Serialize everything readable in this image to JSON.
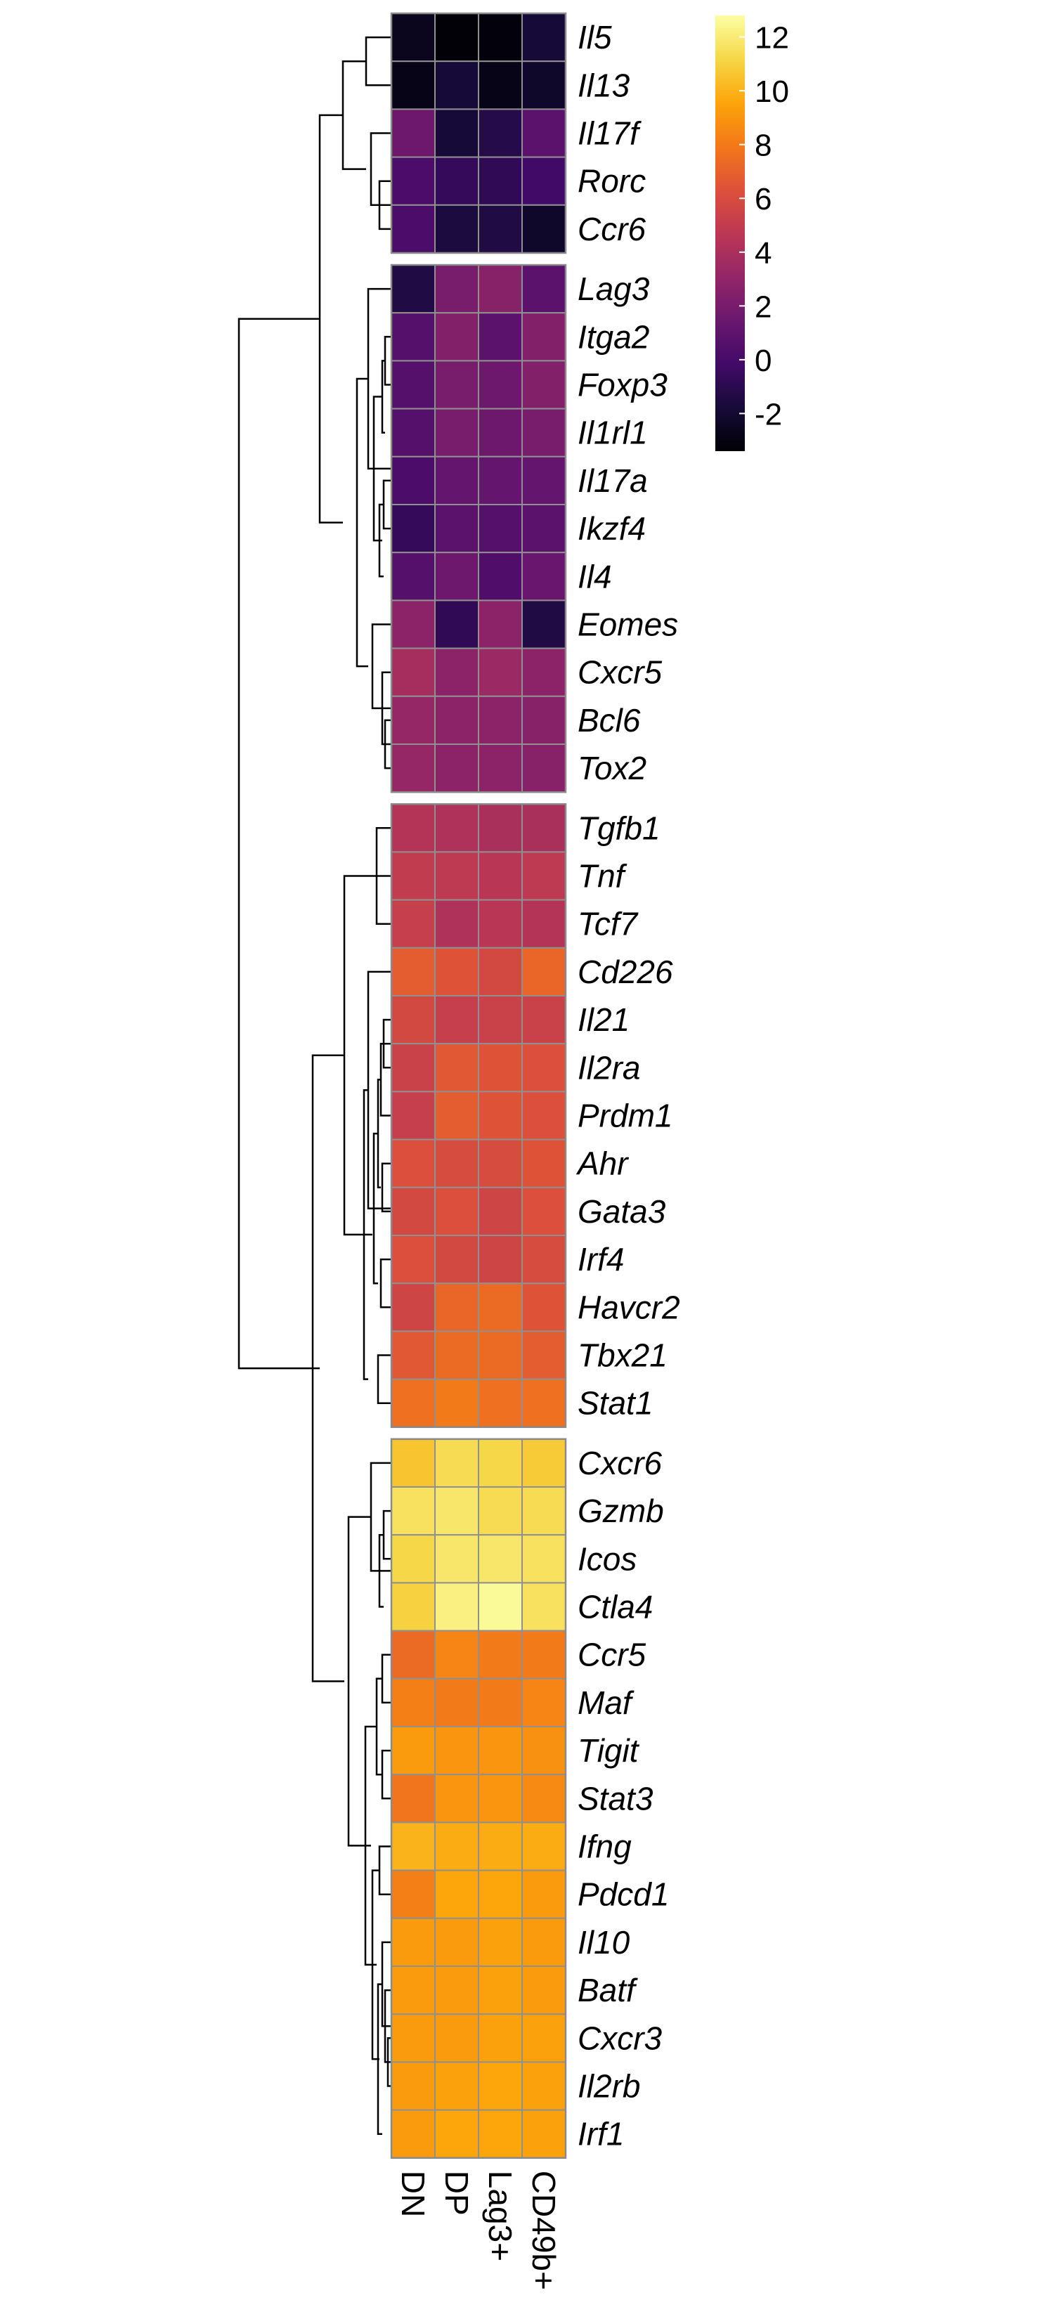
{
  "chart_data": {
    "type": "heatmap",
    "columns": [
      "DN",
      "DP",
      "Lag3+",
      "CD49b+"
    ],
    "row_groups": [
      [
        "Il5",
        "Il13",
        "Il17f",
        "Rorc",
        "Ccr6"
      ],
      [
        "Lag3",
        "Itga2",
        "Foxp3",
        "Il1rl1",
        "Il17a",
        "Ikzf4",
        "Il4",
        "Eomes",
        "Cxcr5",
        "Bcl6",
        "Tox2"
      ],
      [
        "Tgfb1",
        "Tnf",
        "Tcf7",
        "Cd226",
        "Il21",
        "Il2ra",
        "Prdm1",
        "Ahr",
        "Gata3",
        "Irf4",
        "Havcr2",
        "Tbx21",
        "Stat1"
      ],
      [
        "Cxcr6",
        "Gzmb",
        "Icos",
        "Ctla4",
        "Ccr5",
        "Maf",
        "Tigit",
        "Stat3",
        "Ifng",
        "Pdcd1",
        "Il10",
        "Batf",
        "Cxcr3",
        "Il2rb",
        "Irf1"
      ]
    ],
    "values": [
      [
        -2.6,
        -3.3,
        -3.2,
        -1.8
      ],
      [
        -2.8,
        -1.8,
        -2.8,
        -2.2
      ],
      [
        1.6,
        -1.8,
        -1.2,
        0.8
      ],
      [
        0.2,
        -0.6,
        -0.8,
        -0.2
      ],
      [
        0.2,
        -1.6,
        -1.4,
        -2.2
      ],
      [
        -1.4,
        2.0,
        2.6,
        0.8
      ],
      [
        0.6,
        2.4,
        0.8,
        2.4
      ],
      [
        0.6,
        2.0,
        1.6,
        2.4
      ],
      [
        0.6,
        2.0,
        1.6,
        2.0
      ],
      [
        0.2,
        1.2,
        1.2,
        1.2
      ],
      [
        -0.6,
        0.8,
        0.6,
        0.8
      ],
      [
        0.6,
        1.6,
        0.4,
        1.4
      ],
      [
        2.8,
        -0.8,
        2.8,
        -1.4
      ],
      [
        3.8,
        2.8,
        3.4,
        2.8
      ],
      [
        3.2,
        2.8,
        2.8,
        2.6
      ],
      [
        3.2,
        2.8,
        2.8,
        2.6
      ],
      [
        4.4,
        4.2,
        4.0,
        4.0
      ],
      [
        5.0,
        4.8,
        4.6,
        4.8
      ],
      [
        5.2,
        4.2,
        4.6,
        4.4
      ],
      [
        6.8,
        6.4,
        5.8,
        7.2
      ],
      [
        5.8,
        5.2,
        5.4,
        5.4
      ],
      [
        5.4,
        6.6,
        6.4,
        6.2
      ],
      [
        5.2,
        6.8,
        6.4,
        6.2
      ],
      [
        6.2,
        6.0,
        6.0,
        6.4
      ],
      [
        5.8,
        6.2,
        5.6,
        6.2
      ],
      [
        6.2,
        5.8,
        5.6,
        6.0
      ],
      [
        5.6,
        7.2,
        7.4,
        6.4
      ],
      [
        6.6,
        7.4,
        7.4,
        6.8
      ],
      [
        7.6,
        8.0,
        7.6,
        7.6
      ],
      [
        10.6,
        11.4,
        11.2,
        10.8
      ],
      [
        11.6,
        11.8,
        11.4,
        11.4
      ],
      [
        11.2,
        11.8,
        11.8,
        11.6
      ],
      [
        11.0,
        12.2,
        12.6,
        11.6
      ],
      [
        7.4,
        8.4,
        8.0,
        8.0
      ],
      [
        8.2,
        8.0,
        8.0,
        8.4
      ],
      [
        9.2,
        9.0,
        9.0,
        8.8
      ],
      [
        7.8,
        9.0,
        9.0,
        8.6
      ],
      [
        10.0,
        9.8,
        9.8,
        9.8
      ],
      [
        8.2,
        9.6,
        9.6,
        9.2
      ],
      [
        9.2,
        9.2,
        9.4,
        9.2
      ],
      [
        9.2,
        9.2,
        9.4,
        9.2
      ],
      [
        9.2,
        9.2,
        9.4,
        9.4
      ],
      [
        9.2,
        9.4,
        9.6,
        9.4
      ],
      [
        9.2,
        9.6,
        9.6,
        9.4
      ]
    ],
    "color_scale": {
      "name": "inferno",
      "min": -3.4,
      "max": 12.8,
      "ticks": [
        12,
        10,
        8,
        6,
        4,
        2,
        0,
        -2
      ],
      "tick_labels": [
        "12",
        "10",
        "8",
        "6",
        "4",
        "2",
        "0",
        "-2"
      ]
    },
    "dendrogram": "rows",
    "legend": "top-right"
  }
}
